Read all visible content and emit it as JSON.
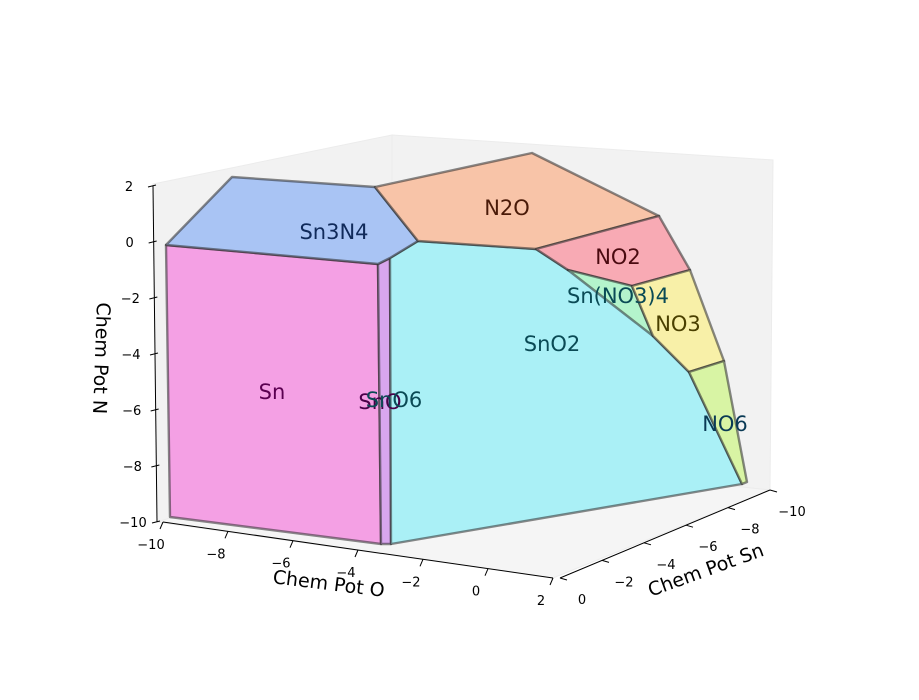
{
  "chart_data": {
    "type": "3d-phase-diagram",
    "axes": {
      "x": {
        "label": "Chem Pot O",
        "range": [
          -10,
          2
        ],
        "ticks": [
          "−10",
          "−8",
          "−6",
          "−4",
          "−2",
          "0",
          "2"
        ]
      },
      "y": {
        "label": "Chem Pot Sn",
        "range": [
          0,
          -10
        ],
        "ticks": [
          "0",
          "−2",
          "−4",
          "−6",
          "−8",
          "−10"
        ]
      },
      "z": {
        "label": "Chem Pot N",
        "range": [
          -10,
          2
        ],
        "ticks": [
          "−10",
          "−8",
          "−6",
          "−4",
          "−2",
          "0",
          "2"
        ]
      }
    },
    "regions": [
      {
        "name": "Sn",
        "label": "Sn",
        "color": "#f4a0e4"
      },
      {
        "name": "SnO-sliver",
        "label": "SnO",
        "color": "#d8a6ee"
      },
      {
        "name": "SnO2",
        "label": "SnO2",
        "color": "#aaf0f6"
      },
      {
        "name": "Sn3N4",
        "label": "Sn3N4",
        "color": "#a9c4f4"
      },
      {
        "name": "N2O",
        "label": "N2O",
        "color": "#f8c4a8"
      },
      {
        "name": "NO2",
        "label": "NO2",
        "color": "#f8aab4"
      },
      {
        "name": "Sn(NO3)4",
        "label": "Sn(NO3)4",
        "color": "#b4f4cc"
      },
      {
        "name": "NO3",
        "label": "NO3",
        "color": "#f8f0a8"
      },
      {
        "name": "NO6",
        "label": "NO6",
        "color": "#d8f4a4"
      },
      {
        "name": "SnO6",
        "label": "SnO6",
        "color": "#aaf0f6"
      }
    ],
    "grid": false
  }
}
